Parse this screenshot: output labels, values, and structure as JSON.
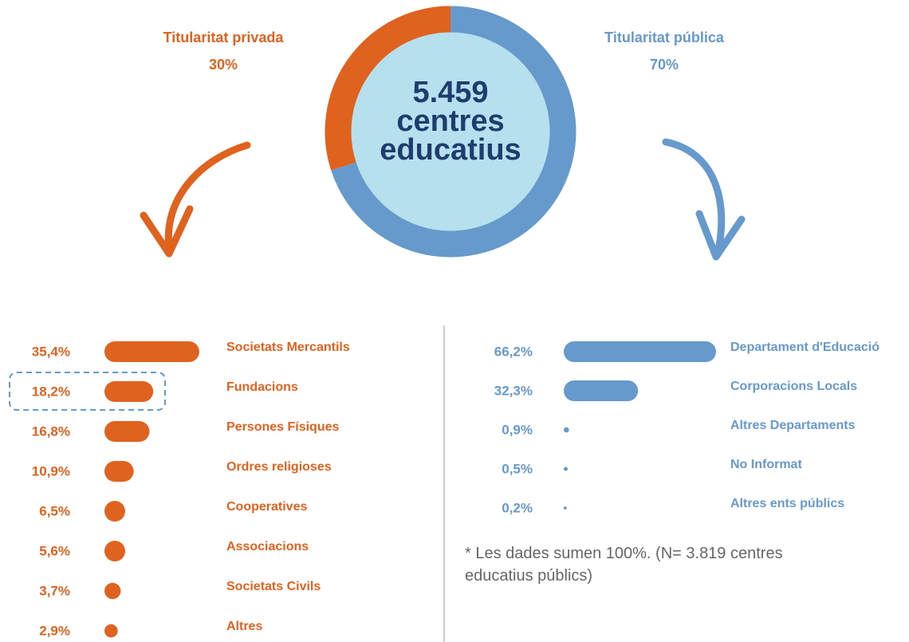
{
  "chart_data": [
    {
      "type": "donut",
      "categories": [
        "Titularitat privada",
        "Titularitat pública"
      ],
      "values": [
        30,
        70
      ],
      "value_labels": [
        "30%",
        "70%"
      ],
      "colors": [
        "#e0621f",
        "#6699cc"
      ],
      "center_label": [
        "5.459",
        "centres",
        "educatius"
      ]
    },
    {
      "type": "bar",
      "categories": [
        "Societats Mercantils",
        "Fundacions",
        "Persones Físiques",
        "Ordres religioses",
        "Cooperatives",
        "Associacions",
        "Societats Civils",
        "Altres"
      ],
      "values": [
        35.4,
        18.2,
        16.8,
        10.9,
        6.5,
        5.6,
        3.7,
        2.9
      ],
      "value_labels": [
        "35,4%",
        "18,2%",
        "16,8%",
        "10,9%",
        "6,5%",
        "5,6%",
        "3,7%",
        "2,9%"
      ],
      "color": "#e0621f"
    },
    {
      "type": "bar",
      "categories": [
        "Departament d'Educació",
        "Corporacions Locals",
        "Altres Departaments",
        "No Informat",
        "Altres ents públics"
      ],
      "values": [
        66.2,
        32.3,
        0.9,
        0.5,
        0.2
      ],
      "value_labels": [
        "66,2%",
        "32,3%",
        "0,9%",
        "0,5%",
        "0,2%"
      ],
      "color": "#6699cc",
      "note": "* Les dades sumen 100%. (N= 3.819 centres educatius públics)"
    }
  ]
}
